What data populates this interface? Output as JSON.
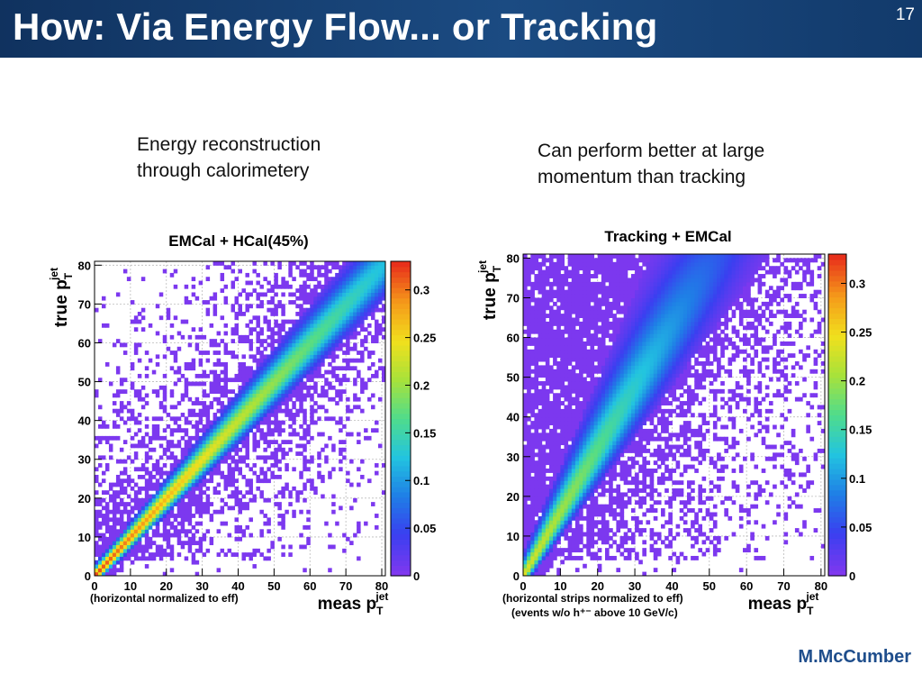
{
  "slide": {
    "title": "How: Via Energy Flow... or Tracking",
    "number": "17",
    "author": "M.McCumber",
    "captions": [
      {
        "line1": "Energy reconstruction",
        "line2": "through calorimetery"
      },
      {
        "line1": "Can perform better at large",
        "line2": "momentum than tracking"
      }
    ]
  },
  "colors": {
    "title_bar": "#1b4b82",
    "title_text": "#ffffff",
    "author": "#1f4e8c",
    "histogram_background": "#7f38ef",
    "palette": [
      "#7f38ef",
      "#3a3ff0",
      "#1f7fe6",
      "#22c4e0",
      "#4fdc8c",
      "#a7e23b",
      "#f1e01d",
      "#f59a1a",
      "#e8301b"
    ]
  },
  "chart_data": [
    {
      "type": "heatmap",
      "title": "EMCal + HCal(45%)",
      "xlabel": "meas p",
      "xlabel_sub": "T",
      "xlabel_sup": "jet",
      "ylabel": "true p",
      "ylabel_sub": "T",
      "ylabel_sup": "jet",
      "xlim": [
        0,
        81
      ],
      "ylim": [
        0,
        81
      ],
      "x_ticks": [
        0,
        10,
        20,
        30,
        40,
        50,
        60,
        70,
        80
      ],
      "y_ticks": [
        0,
        10,
        20,
        30,
        40,
        50,
        60,
        70,
        80
      ],
      "colorbar_ticks": [
        0,
        0.05,
        0.1,
        0.15,
        0.2,
        0.25,
        0.3
      ],
      "colorbar_tick_labels": [
        "0",
        "0.05",
        "0.1",
        "0.15",
        "0.2",
        "0.25",
        "0.3"
      ],
      "zlim": [
        0,
        0.33
      ],
      "grid": true,
      "notes": [
        "(horizontal normalized to eff)"
      ],
      "response": {
        "slope": 1.0,
        "width_const": 1.3,
        "width_frac": 0.05,
        "diag_z_low": 0.32,
        "diag_z_high": 0.12,
        "background_spread": 22,
        "sparse_region": "both"
      }
    },
    {
      "type": "heatmap",
      "title": "Tracking + EMCal",
      "xlabel": "meas p",
      "xlabel_sub": "T",
      "xlabel_sup": "jet",
      "ylabel": "true p",
      "ylabel_sub": "T",
      "ylabel_sup": "jet",
      "xlim": [
        0,
        81
      ],
      "ylim": [
        0,
        81
      ],
      "x_ticks": [
        0,
        10,
        20,
        30,
        40,
        50,
        60,
        70,
        80
      ],
      "y_ticks": [
        0,
        10,
        20,
        30,
        40,
        50,
        60,
        70,
        80
      ],
      "colorbar_ticks": [
        0,
        0.05,
        0.1,
        0.15,
        0.2,
        0.25,
        0.3
      ],
      "colorbar_tick_labels": [
        "0",
        "0.05",
        "0.1",
        "0.15",
        "0.2",
        "0.25",
        "0.3"
      ],
      "zlim": [
        0,
        0.33
      ],
      "grid": true,
      "notes": [
        "(horizontal strips normalized to eff)",
        "(events w/o h⁺⁻ above 10 GeV/c)"
      ],
      "response": {
        "slope": 0.62,
        "width_const": 1.2,
        "width_frac": 0.08,
        "diag_z_low": 0.24,
        "diag_z_high": 0.06,
        "background_spread": 30,
        "sparse_region": "lower-right"
      }
    }
  ]
}
